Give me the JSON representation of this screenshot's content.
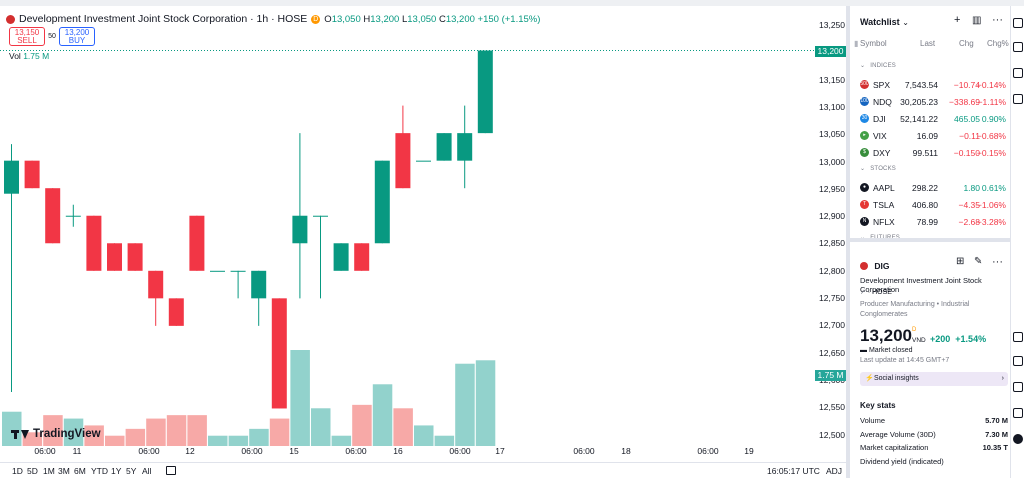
{
  "header": {
    "symbol_title": "Development Investment Joint Stock Corporation · 1h · HOSE",
    "ohlc": {
      "o_label": "O",
      "o": "13,050",
      "h_label": "H",
      "h": "13,200",
      "l_label": "L",
      "l": "13,050",
      "c_label": "C",
      "c": "13,200",
      "change": "+150 (+1.15%)"
    },
    "delayed_mark": "D"
  },
  "trade": {
    "sell_price": "13,150",
    "sell_label": "SELL",
    "spread": "50",
    "buy_price": "13,200",
    "buy_label": "BUY"
  },
  "volume_legend": {
    "label": "Vol",
    "value": "1.75 M"
  },
  "branding": {
    "logo_text": "TradingView"
  },
  "price_axis": {
    "labels": [
      "13,250",
      "13,200",
      "13,150",
      "13,100",
      "13,050",
      "13,000",
      "12,950",
      "12,900",
      "12,850",
      "12,800",
      "12,750",
      "12,700",
      "12,650",
      "12,600",
      "12,550",
      "12,500"
    ],
    "last_price_badge": "13,200",
    "volume_badge": "1.75 M"
  },
  "time_axis": {
    "labels": [
      "06:00",
      "11",
      "06:00",
      "12",
      "06:00",
      "15",
      "06:00",
      "16",
      "06:00",
      "17",
      "06:00",
      "18",
      "06:00",
      "19"
    ]
  },
  "bottom_bar": {
    "ranges": [
      "1D",
      "5D",
      "1M",
      "3M",
      "6M",
      "YTD",
      "1Y",
      "5Y",
      "All"
    ],
    "clock": "16:05:17 UTC",
    "adj": "ADJ"
  },
  "chart_data": {
    "type": "candlestick",
    "ylim": [
      12480,
      13270
    ],
    "bullish_color": "#089981",
    "bearish_color": "#f23645",
    "candles": [
      {
        "o": 12940,
        "h": 13030,
        "l": 12580,
        "c": 13000
      },
      {
        "o": 13000,
        "h": 13000,
        "l": 12950,
        "c": 12950
      },
      {
        "o": 12950,
        "h": 12950,
        "l": 12850,
        "c": 12850
      },
      {
        "o": 12900,
        "h": 12920,
        "l": 12880,
        "c": 12900
      },
      {
        "o": 12900,
        "h": 12900,
        "l": 12800,
        "c": 12800
      },
      {
        "o": 12850,
        "h": 12850,
        "l": 12800,
        "c": 12800
      },
      {
        "o": 12850,
        "h": 12850,
        "l": 12800,
        "c": 12800
      },
      {
        "o": 12800,
        "h": 12800,
        "l": 12700,
        "c": 12750
      },
      {
        "o": 12750,
        "h": 12750,
        "l": 12700,
        "c": 12700
      },
      {
        "o": 12900,
        "h": 12900,
        "l": 12800,
        "c": 12800
      },
      {
        "o": 12800,
        "h": 12800,
        "l": 12800,
        "c": 12800
      },
      {
        "o": 12800,
        "h": 12800,
        "l": 12750,
        "c": 12800
      },
      {
        "o": 12750,
        "h": 12800,
        "l": 12700,
        "c": 12800
      },
      {
        "o": 12750,
        "h": 12750,
        "l": 12550,
        "c": 12550
      },
      {
        "o": 12850,
        "h": 13050,
        "l": 12750,
        "c": 12900
      },
      {
        "o": 12900,
        "h": 12900,
        "l": 12750,
        "c": 12900
      },
      {
        "o": 12800,
        "h": 12850,
        "l": 12800,
        "c": 12850
      },
      {
        "o": 12850,
        "h": 12850,
        "l": 12800,
        "c": 12800
      },
      {
        "o": 12850,
        "h": 13000,
        "l": 12850,
        "c": 13000
      },
      {
        "o": 13050,
        "h": 13100,
        "l": 12950,
        "c": 12950
      },
      {
        "o": 13000,
        "h": 13000,
        "l": 13000,
        "c": 13000
      },
      {
        "o": 13000,
        "h": 13050,
        "l": 13000,
        "c": 13050
      },
      {
        "o": 13000,
        "h": 13100,
        "l": 12950,
        "c": 13050
      },
      {
        "o": 13050,
        "h": 13200,
        "l": 13050,
        "c": 13200
      }
    ],
    "volume_max": 1.75,
    "volume": [
      0.5,
      0.2,
      0.45,
      0.4,
      0.3,
      0.15,
      0.25,
      0.4,
      0.45,
      0.45,
      0.15,
      0.15,
      0.25,
      0.4,
      1.4,
      0.55,
      0.15,
      0.6,
      0.9,
      0.55,
      0.3,
      0.15,
      1.2,
      1.25
    ]
  },
  "watchlist": {
    "title": "Watchlist",
    "columns": {
      "symbol": "Symbol",
      "last": "Last",
      "chg": "Chg",
      "chg_pct": "Chg%"
    },
    "sections": [
      {
        "label": "INDICES",
        "rows": [
          {
            "symbol": "SPX",
            "last": "7,543.54",
            "chg": "−10.74",
            "pct": "−0.14%",
            "dir": "neg",
            "icon_color": "#d32f2f",
            "icon_text": "500"
          },
          {
            "symbol": "NDQ",
            "last": "30,205.23",
            "chg": "−338.69",
            "pct": "−1.11%",
            "dir": "neg",
            "icon_color": "#1565c0",
            "icon_text": "100"
          },
          {
            "symbol": "DJI",
            "last": "52,141.22",
            "chg": "465.05",
            "pct": "0.90%",
            "dir": "pos",
            "icon_color": "#1e88e5",
            "icon_text": "30"
          },
          {
            "symbol": "VIX",
            "last": "16.09",
            "chg": "−0.11",
            "pct": "−0.68%",
            "dir": "neg",
            "icon_color": "#43a047",
            "icon_text": "▸"
          },
          {
            "symbol": "DXY",
            "last": "99.511",
            "chg": "−0.150",
            "pct": "−0.15%",
            "dir": "neg",
            "icon_color": "#388e3c",
            "icon_text": "$"
          }
        ]
      },
      {
        "label": "STOCKS",
        "rows": [
          {
            "symbol": "AAPL",
            "last": "298.22",
            "chg": "1.80",
            "pct": "0.61%",
            "dir": "pos",
            "icon_color": "#131722",
            "icon_text": "●"
          },
          {
            "symbol": "TSLA",
            "last": "406.80",
            "chg": "−4.35",
            "pct": "−1.06%",
            "dir": "neg",
            "icon_color": "#e53935",
            "icon_text": "T"
          },
          {
            "symbol": "NFLX",
            "last": "78.99",
            "chg": "−2.68",
            "pct": "−3.28%",
            "dir": "neg",
            "icon_color": "#131722",
            "icon_text": "N"
          }
        ]
      },
      {
        "label": "FUTURES",
        "rows": []
      }
    ]
  },
  "details": {
    "symbol": "DIG",
    "name": "Development Investment Joint Stock Corporation",
    "exchange": "· HOSE",
    "sector": "Producer Manufacturing • Industrial Conglomerates",
    "price": "13,200",
    "currency_mark": "D",
    "currency": "VND",
    "change": "+200",
    "change_pct": "+1.54%",
    "status": "Market closed",
    "last_update": "Last update at 14:45 GMT+7",
    "social_label": "Social insights",
    "key_stats_title": "Key stats",
    "key_stats": [
      {
        "label": "Volume",
        "value": "5.70 M"
      },
      {
        "label": "Average Volume (30D)",
        "value": "7.30 M"
      },
      {
        "label": "Market capitalization",
        "value": "10.35 T"
      },
      {
        "label": "Dividend yield (indicated)",
        "value": ""
      }
    ]
  }
}
